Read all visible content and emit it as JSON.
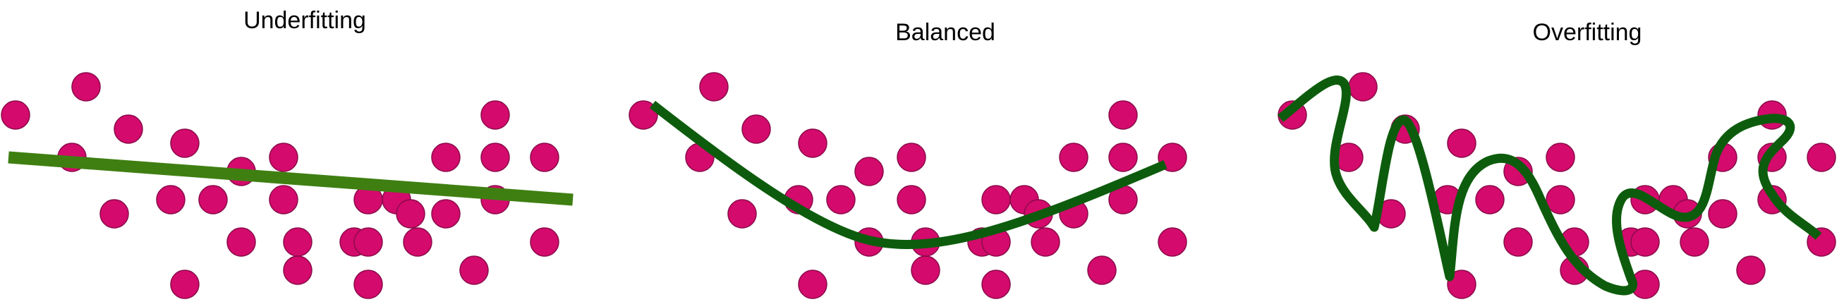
{
  "panels": [
    {
      "key": "underfitting",
      "title": "Underfitting"
    },
    {
      "key": "balanced",
      "title": "Balanced"
    },
    {
      "key": "overfitting",
      "title": "Overfitting"
    }
  ],
  "colors": {
    "point_fill": "#d40a6c",
    "point_stroke": "#8a0a4a",
    "underfit_line": "#3f7f12",
    "fit_line": "#0d5c0d",
    "background": "#ffffff"
  }
}
